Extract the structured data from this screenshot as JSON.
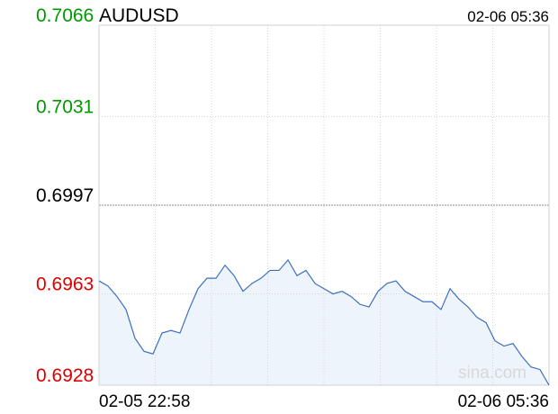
{
  "chart_data": {
    "type": "line",
    "title": "AUDUSD",
    "time": "02-06 05:36",
    "watermark": "sina.com",
    "categories": [
      "02-05 22:58",
      null,
      null,
      null,
      null,
      null,
      null,
      null,
      null,
      null,
      null,
      null,
      null,
      null,
      null,
      null,
      null,
      null,
      null,
      null,
      null,
      null,
      null,
      null,
      null,
      null,
      null,
      null,
      null,
      null,
      null,
      null,
      null,
      null,
      null,
      null,
      null,
      null,
      null,
      null,
      null,
      null,
      null,
      null,
      null,
      null,
      null,
      null,
      null,
      null,
      "02-06 05:36"
    ],
    "series": [
      {
        "name": "AUDUSD",
        "color": "#3d6fbf",
        "values": [
          0.6968,
          0.6966,
          0.6962,
          0.6957,
          0.6946,
          0.6941,
          0.694,
          0.6948,
          0.6949,
          0.6948,
          0.6957,
          0.6965,
          0.6969,
          0.6969,
          0.6974,
          0.697,
          0.6964,
          0.6967,
          0.6969,
          0.6972,
          0.6972,
          0.6976,
          0.697,
          0.6972,
          0.6967,
          0.6965,
          0.6963,
          0.6964,
          0.6962,
          0.6959,
          0.6958,
          0.6964,
          0.6967,
          0.6968,
          0.6964,
          0.6962,
          0.696,
          0.696,
          0.6957,
          0.6965,
          0.6961,
          0.6958,
          0.6954,
          0.6952,
          0.6945,
          0.6943,
          0.6944,
          0.6939,
          0.6935,
          0.6934,
          0.6928
        ]
      }
    ],
    "ylim": [
      0.6928,
      0.7066
    ],
    "yticks": [
      0.6928,
      0.6963,
      0.6997,
      0.7031,
      0.7066
    ],
    "ytick_colors": [
      "#dd0000",
      "#dd0000",
      "#000000",
      "#009900",
      "#009900"
    ],
    "area_fill": "#eef4fc",
    "grid": true
  }
}
